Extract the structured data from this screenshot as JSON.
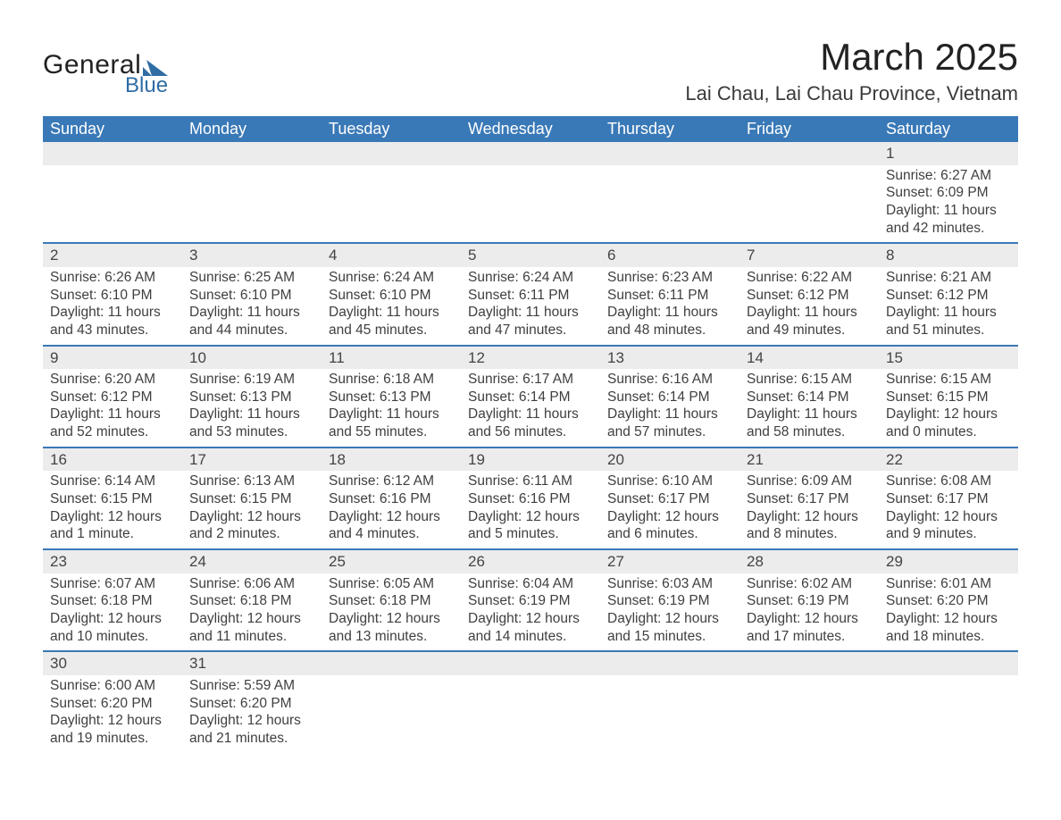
{
  "logo": {
    "word1": "General",
    "word2": "Blue",
    "mark_color": "#2f6da4"
  },
  "header": {
    "month_title": "March 2025",
    "location": "Lai Chau, Lai Chau Province, Vietnam"
  },
  "weekday_labels": [
    "Sunday",
    "Monday",
    "Tuesday",
    "Wednesday",
    "Thursday",
    "Friday",
    "Saturday"
  ],
  "colors": {
    "header_bg": "#3a79b7",
    "header_text": "#ffffff",
    "daynum_bg": "#ececec",
    "row_border": "#3a79b7",
    "body_text": "#3f3f3f"
  },
  "weeks": [
    [
      null,
      null,
      null,
      null,
      null,
      null,
      {
        "day": "1",
        "sunrise": "Sunrise: 6:27 AM",
        "sunset": "Sunset: 6:09 PM",
        "dl1": "Daylight: 11 hours",
        "dl2": "and 42 minutes."
      }
    ],
    [
      {
        "day": "2",
        "sunrise": "Sunrise: 6:26 AM",
        "sunset": "Sunset: 6:10 PM",
        "dl1": "Daylight: 11 hours",
        "dl2": "and 43 minutes."
      },
      {
        "day": "3",
        "sunrise": "Sunrise: 6:25 AM",
        "sunset": "Sunset: 6:10 PM",
        "dl1": "Daylight: 11 hours",
        "dl2": "and 44 minutes."
      },
      {
        "day": "4",
        "sunrise": "Sunrise: 6:24 AM",
        "sunset": "Sunset: 6:10 PM",
        "dl1": "Daylight: 11 hours",
        "dl2": "and 45 minutes."
      },
      {
        "day": "5",
        "sunrise": "Sunrise: 6:24 AM",
        "sunset": "Sunset: 6:11 PM",
        "dl1": "Daylight: 11 hours",
        "dl2": "and 47 minutes."
      },
      {
        "day": "6",
        "sunrise": "Sunrise: 6:23 AM",
        "sunset": "Sunset: 6:11 PM",
        "dl1": "Daylight: 11 hours",
        "dl2": "and 48 minutes."
      },
      {
        "day": "7",
        "sunrise": "Sunrise: 6:22 AM",
        "sunset": "Sunset: 6:12 PM",
        "dl1": "Daylight: 11 hours",
        "dl2": "and 49 minutes."
      },
      {
        "day": "8",
        "sunrise": "Sunrise: 6:21 AM",
        "sunset": "Sunset: 6:12 PM",
        "dl1": "Daylight: 11 hours",
        "dl2": "and 51 minutes."
      }
    ],
    [
      {
        "day": "9",
        "sunrise": "Sunrise: 6:20 AM",
        "sunset": "Sunset: 6:12 PM",
        "dl1": "Daylight: 11 hours",
        "dl2": "and 52 minutes."
      },
      {
        "day": "10",
        "sunrise": "Sunrise: 6:19 AM",
        "sunset": "Sunset: 6:13 PM",
        "dl1": "Daylight: 11 hours",
        "dl2": "and 53 minutes."
      },
      {
        "day": "11",
        "sunrise": "Sunrise: 6:18 AM",
        "sunset": "Sunset: 6:13 PM",
        "dl1": "Daylight: 11 hours",
        "dl2": "and 55 minutes."
      },
      {
        "day": "12",
        "sunrise": "Sunrise: 6:17 AM",
        "sunset": "Sunset: 6:14 PM",
        "dl1": "Daylight: 11 hours",
        "dl2": "and 56 minutes."
      },
      {
        "day": "13",
        "sunrise": "Sunrise: 6:16 AM",
        "sunset": "Sunset: 6:14 PM",
        "dl1": "Daylight: 11 hours",
        "dl2": "and 57 minutes."
      },
      {
        "day": "14",
        "sunrise": "Sunrise: 6:15 AM",
        "sunset": "Sunset: 6:14 PM",
        "dl1": "Daylight: 11 hours",
        "dl2": "and 58 minutes."
      },
      {
        "day": "15",
        "sunrise": "Sunrise: 6:15 AM",
        "sunset": "Sunset: 6:15 PM",
        "dl1": "Daylight: 12 hours",
        "dl2": "and 0 minutes."
      }
    ],
    [
      {
        "day": "16",
        "sunrise": "Sunrise: 6:14 AM",
        "sunset": "Sunset: 6:15 PM",
        "dl1": "Daylight: 12 hours",
        "dl2": "and 1 minute."
      },
      {
        "day": "17",
        "sunrise": "Sunrise: 6:13 AM",
        "sunset": "Sunset: 6:15 PM",
        "dl1": "Daylight: 12 hours",
        "dl2": "and 2 minutes."
      },
      {
        "day": "18",
        "sunrise": "Sunrise: 6:12 AM",
        "sunset": "Sunset: 6:16 PM",
        "dl1": "Daylight: 12 hours",
        "dl2": "and 4 minutes."
      },
      {
        "day": "19",
        "sunrise": "Sunrise: 6:11 AM",
        "sunset": "Sunset: 6:16 PM",
        "dl1": "Daylight: 12 hours",
        "dl2": "and 5 minutes."
      },
      {
        "day": "20",
        "sunrise": "Sunrise: 6:10 AM",
        "sunset": "Sunset: 6:17 PM",
        "dl1": "Daylight: 12 hours",
        "dl2": "and 6 minutes."
      },
      {
        "day": "21",
        "sunrise": "Sunrise: 6:09 AM",
        "sunset": "Sunset: 6:17 PM",
        "dl1": "Daylight: 12 hours",
        "dl2": "and 8 minutes."
      },
      {
        "day": "22",
        "sunrise": "Sunrise: 6:08 AM",
        "sunset": "Sunset: 6:17 PM",
        "dl1": "Daylight: 12 hours",
        "dl2": "and 9 minutes."
      }
    ],
    [
      {
        "day": "23",
        "sunrise": "Sunrise: 6:07 AM",
        "sunset": "Sunset: 6:18 PM",
        "dl1": "Daylight: 12 hours",
        "dl2": "and 10 minutes."
      },
      {
        "day": "24",
        "sunrise": "Sunrise: 6:06 AM",
        "sunset": "Sunset: 6:18 PM",
        "dl1": "Daylight: 12 hours",
        "dl2": "and 11 minutes."
      },
      {
        "day": "25",
        "sunrise": "Sunrise: 6:05 AM",
        "sunset": "Sunset: 6:18 PM",
        "dl1": "Daylight: 12 hours",
        "dl2": "and 13 minutes."
      },
      {
        "day": "26",
        "sunrise": "Sunrise: 6:04 AM",
        "sunset": "Sunset: 6:19 PM",
        "dl1": "Daylight: 12 hours",
        "dl2": "and 14 minutes."
      },
      {
        "day": "27",
        "sunrise": "Sunrise: 6:03 AM",
        "sunset": "Sunset: 6:19 PM",
        "dl1": "Daylight: 12 hours",
        "dl2": "and 15 minutes."
      },
      {
        "day": "28",
        "sunrise": "Sunrise: 6:02 AM",
        "sunset": "Sunset: 6:19 PM",
        "dl1": "Daylight: 12 hours",
        "dl2": "and 17 minutes."
      },
      {
        "day": "29",
        "sunrise": "Sunrise: 6:01 AM",
        "sunset": "Sunset: 6:20 PM",
        "dl1": "Daylight: 12 hours",
        "dl2": "and 18 minutes."
      }
    ],
    [
      {
        "day": "30",
        "sunrise": "Sunrise: 6:00 AM",
        "sunset": "Sunset: 6:20 PM",
        "dl1": "Daylight: 12 hours",
        "dl2": "and 19 minutes."
      },
      {
        "day": "31",
        "sunrise": "Sunrise: 5:59 AM",
        "sunset": "Sunset: 6:20 PM",
        "dl1": "Daylight: 12 hours",
        "dl2": "and 21 minutes."
      },
      null,
      null,
      null,
      null,
      null
    ]
  ]
}
